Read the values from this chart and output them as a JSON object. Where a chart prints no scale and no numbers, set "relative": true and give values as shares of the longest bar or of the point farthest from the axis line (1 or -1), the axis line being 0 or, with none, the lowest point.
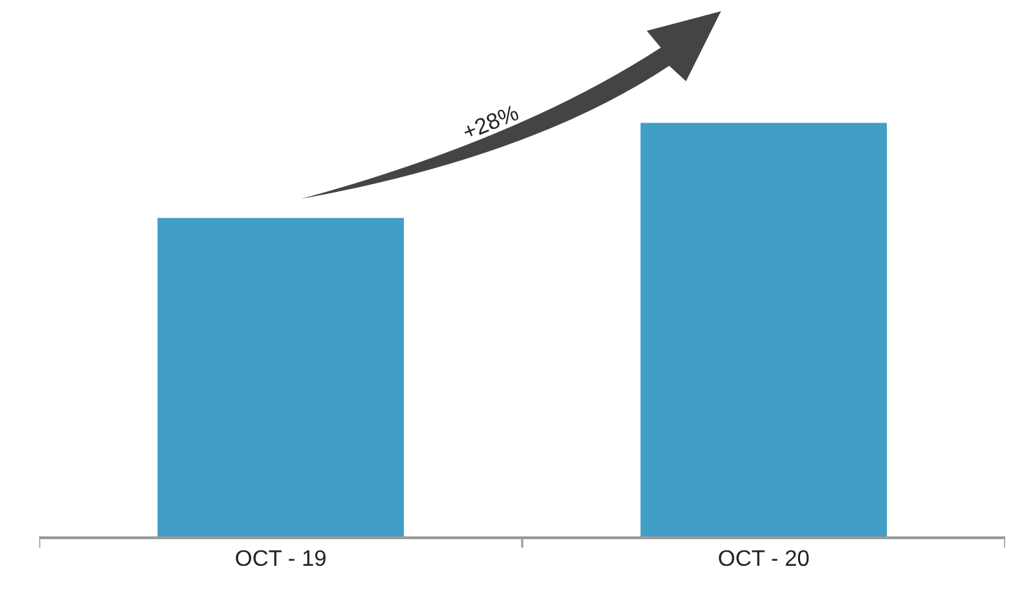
{
  "chart_data": {
    "type": "bar",
    "categories": [
      "OCT - 19",
      "OCT - 20"
    ],
    "values": [
      0.77,
      1
    ],
    "color": "#419ec4",
    "relative": true,
    "annotations": [
      "+28%"
    ]
  }
}
